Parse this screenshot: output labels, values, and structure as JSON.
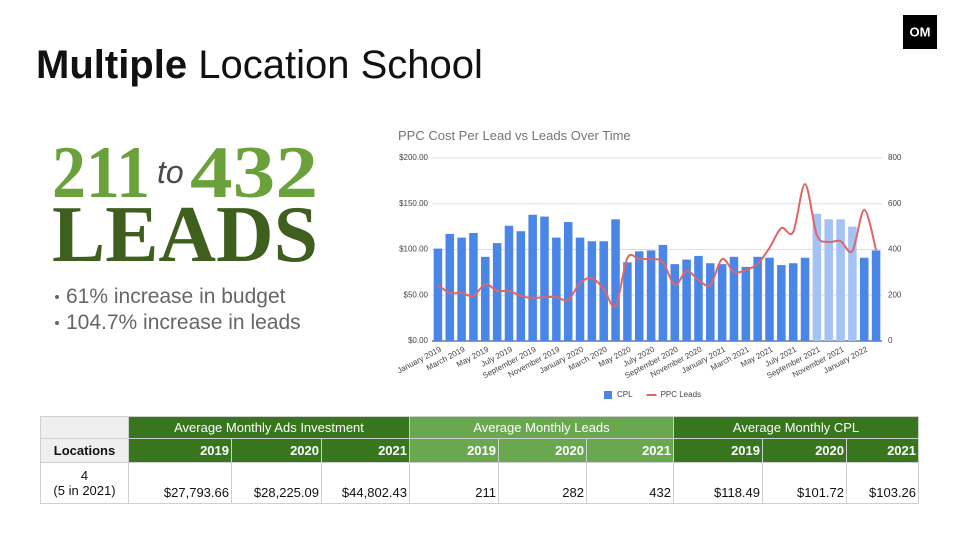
{
  "logo": "OM",
  "header": {
    "title_bold": "Multiple",
    "title_rest": "Location School"
  },
  "hero": {
    "from": "211",
    "to_word": "to",
    "to": "432",
    "leads": "LEADS"
  },
  "bullets": [
    "61% increase in budget",
    "104.7% increase in leads"
  ],
  "chart_data": {
    "type": "combo",
    "title": "PPC Cost Per Lead vs Leads Over Time",
    "categories": [
      "January 2019",
      null,
      "March 2019",
      null,
      "May 2019",
      null,
      "July 2019",
      null,
      "September 2019",
      null,
      "November 2019",
      null,
      "January 2020",
      null,
      "March 2020",
      null,
      "May 2020",
      null,
      "July 2020",
      null,
      "September 2020",
      null,
      "November 2020",
      null,
      "January 2021",
      null,
      "March 2021",
      null,
      "May 2021",
      null,
      "July 2021",
      null,
      "September 2021",
      null,
      "November 2021",
      null,
      "January 2022",
      null
    ],
    "series": [
      {
        "name": "CPL",
        "type": "bar",
        "color": "#4a86e8",
        "colors": [
          "#4a86e8",
          "#4a86e8",
          "#4a86e8",
          "#4a86e8",
          "#4a86e8",
          "#4a86e8",
          "#4a86e8",
          "#4a86e8",
          "#4a86e8",
          "#4a86e8",
          "#4a86e8",
          "#4a86e8",
          "#4a86e8",
          "#4a86e8",
          "#4a86e8",
          "#4a86e8",
          "#4a86e8",
          "#4a86e8",
          "#4a86e8",
          "#4a86e8",
          "#4a86e8",
          "#4a86e8",
          "#4a86e8",
          "#4a86e8",
          "#4a86e8",
          "#4a86e8",
          "#4a86e8",
          "#4a86e8",
          "#4a86e8",
          "#4a86e8",
          "#4a86e8",
          "#4a86e8",
          "#a4c2f4",
          "#a4c2f4",
          "#a4c2f4",
          "#a4c2f4",
          "#4a86e8",
          "#4a86e8"
        ],
        "values": [
          101,
          117,
          113,
          118,
          92,
          107,
          126,
          120,
          138,
          136,
          113,
          130,
          113,
          109,
          109,
          133,
          86,
          98,
          99,
          105,
          84,
          89,
          93,
          85,
          84,
          92,
          81,
          92,
          91,
          83,
          85,
          91,
          139,
          133,
          133,
          125,
          91,
          99
        ]
      },
      {
        "name": "PPC Leads",
        "type": "line",
        "axis": "y2",
        "color": "#e06666",
        "values": [
          245,
          210,
          210,
          197,
          249,
          219,
          219,
          197,
          188,
          192,
          192,
          179,
          254,
          275,
          227,
          153,
          363,
          358,
          358,
          345,
          245,
          306,
          267,
          245,
          358,
          302,
          310,
          337,
          407,
          494,
          476,
          686,
          463,
          433,
          437,
          393,
          573,
          398
        ]
      }
    ],
    "ylim": [
      0,
      200
    ],
    "yticks": [
      {
        "value": 0,
        "label": "$0.00"
      },
      {
        "value": 50,
        "label": "$50.00"
      },
      {
        "value": 100,
        "label": "$100.00"
      },
      {
        "value": 150,
        "label": "$150.00"
      },
      {
        "value": 200,
        "label": "$200.00"
      }
    ],
    "y2lim": [
      0,
      800
    ],
    "y2ticks": [
      0,
      200,
      400,
      600,
      800
    ],
    "grid": true,
    "legend": "bottom"
  },
  "table": {
    "row_header": "Locations",
    "location": [
      "4",
      "(5 in 2021)"
    ],
    "groups": [
      {
        "title": "Average Monthly Ads Investment",
        "years": [
          "2019",
          "2020",
          "2021"
        ],
        "values": [
          "$27,793.66",
          "$28,225.09",
          "$44,802.43"
        ]
      },
      {
        "title": "Average Monthly Leads",
        "years": [
          "2019",
          "2020",
          "2021"
        ],
        "values": [
          "211",
          "282",
          "432"
        ]
      },
      {
        "title": "Average Monthly CPL",
        "years": [
          "2019",
          "2020",
          "2021"
        ],
        "values": [
          "$118.49",
          "$101.72",
          "$103.26"
        ]
      }
    ]
  }
}
